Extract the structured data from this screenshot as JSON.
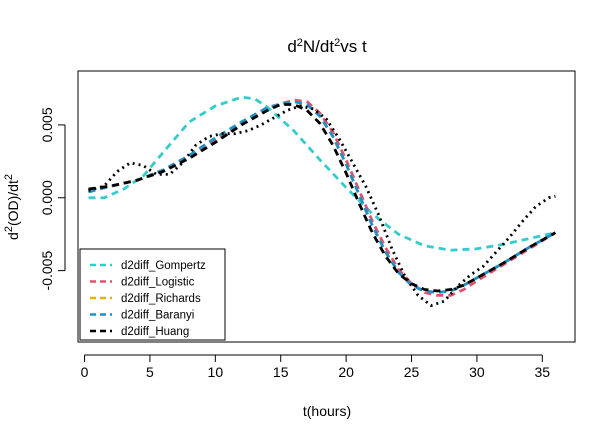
{
  "chart_data": {
    "type": "line",
    "title": {
      "parts": [
        {
          "text": "d",
          "sup": false
        },
        {
          "text": "2",
          "sup": true
        },
        {
          "text": "N/dt",
          "sup": false
        },
        {
          "text": "2",
          "sup": true
        },
        {
          "text": "vs t",
          "sup": false
        }
      ]
    },
    "xlabel": "t(hours)",
    "ylabel": {
      "parts": [
        {
          "text": "d",
          "sup": false
        },
        {
          "text": "2",
          "sup": true
        },
        {
          "text": "(OD)/dt",
          "sup": false
        },
        {
          "text": "2",
          "sup": true
        }
      ]
    },
    "xlim": [
      -0.5,
      37.5
    ],
    "ylim": [
      -0.0099,
      0.0087
    ],
    "x_ticks": [
      0,
      5,
      10,
      15,
      20,
      25,
      30,
      35
    ],
    "x_tick_labels": [
      "0",
      "5",
      "10",
      "15",
      "20",
      "25",
      "30",
      "35"
    ],
    "y_ticks": [
      -0.005,
      0.0,
      0.005
    ],
    "y_tick_labels": [
      "-0.005",
      "0.000",
      "0.005"
    ],
    "grid": false,
    "legend_position": "bottom-left",
    "series": [
      {
        "name": "d2diff_Gompertz",
        "color": "#33cccc",
        "dash": "dashed",
        "points": [
          [
            0.3,
            0.0
          ],
          [
            1.5,
            0.0
          ],
          [
            3,
            0.0006
          ],
          [
            4.5,
            0.0015
          ],
          [
            6,
            0.0031
          ],
          [
            8,
            0.0052
          ],
          [
            10,
            0.0063
          ],
          [
            12,
            0.0069
          ],
          [
            13,
            0.0068
          ],
          [
            14,
            0.0062
          ],
          [
            16,
            0.0046
          ],
          [
            18,
            0.0026
          ],
          [
            20,
            0.0007
          ],
          [
            22,
            -0.0011
          ],
          [
            24,
            -0.0025
          ],
          [
            26,
            -0.0033
          ],
          [
            28,
            -0.0036
          ],
          [
            30,
            -0.0035
          ],
          [
            32,
            -0.0032
          ],
          [
            34,
            -0.0028
          ],
          [
            36,
            -0.0024
          ]
        ]
      },
      {
        "name": "d2diff_Logistic",
        "color": "#e0506e",
        "dash": "dashed",
        "points": [
          [
            0.3,
            0.0004
          ],
          [
            2,
            0.0008
          ],
          [
            4,
            0.0012
          ],
          [
            6,
            0.0019
          ],
          [
            8,
            0.0028
          ],
          [
            10,
            0.0039
          ],
          [
            12,
            0.0051
          ],
          [
            14,
            0.0062
          ],
          [
            16,
            0.0067
          ],
          [
            17,
            0.0066
          ],
          [
            18,
            0.0058
          ],
          [
            19,
            0.0045
          ],
          [
            20,
            0.0026
          ],
          [
            21,
            0.0005
          ],
          [
            22,
            -0.0016
          ],
          [
            23,
            -0.0034
          ],
          [
            24,
            -0.0049
          ],
          [
            25,
            -0.0059
          ],
          [
            26,
            -0.0065
          ],
          [
            27,
            -0.0067
          ],
          [
            28,
            -0.0067
          ],
          [
            29,
            -0.0063
          ],
          [
            30,
            -0.0057
          ],
          [
            32,
            -0.0046
          ],
          [
            34,
            -0.0035
          ],
          [
            36,
            -0.0024
          ]
        ]
      },
      {
        "name": "d2diff_Richards",
        "color": "#e0b400",
        "dash": "dashed",
        "points": [
          [
            0.3,
            0.0004
          ],
          [
            2,
            0.0008
          ],
          [
            4,
            0.0012
          ],
          [
            6,
            0.0019
          ],
          [
            8,
            0.0029
          ],
          [
            10,
            0.0041
          ],
          [
            12,
            0.0052
          ],
          [
            14,
            0.0062
          ],
          [
            16,
            0.0066
          ],
          [
            17,
            0.0064
          ],
          [
            18,
            0.0056
          ],
          [
            19,
            0.0042
          ],
          [
            20,
            0.0023
          ],
          [
            21,
            0.0002
          ],
          [
            22,
            -0.0019
          ],
          [
            23,
            -0.0037
          ],
          [
            24,
            -0.0051
          ],
          [
            25,
            -0.006
          ],
          [
            26,
            -0.0064
          ],
          [
            27,
            -0.0065
          ],
          [
            28,
            -0.0064
          ],
          [
            29,
            -0.006
          ],
          [
            30,
            -0.0055
          ],
          [
            32,
            -0.0045
          ],
          [
            34,
            -0.0034
          ],
          [
            36,
            -0.0024
          ]
        ]
      },
      {
        "name": "d2diff_Baranyi",
        "color": "#1f8fcc",
        "dash": "dashed",
        "points": [
          [
            0.3,
            0.0004
          ],
          [
            2,
            0.0008
          ],
          [
            4,
            0.0012
          ],
          [
            6,
            0.0019
          ],
          [
            8,
            0.0029
          ],
          [
            10,
            0.0041
          ],
          [
            12,
            0.0052
          ],
          [
            14,
            0.0062
          ],
          [
            16,
            0.0066
          ],
          [
            17,
            0.0064
          ],
          [
            18,
            0.0056
          ],
          [
            19,
            0.0042
          ],
          [
            20,
            0.0023
          ],
          [
            21,
            0.0002
          ],
          [
            22,
            -0.0019
          ],
          [
            23,
            -0.0037
          ],
          [
            24,
            -0.0051
          ],
          [
            25,
            -0.006
          ],
          [
            26,
            -0.0064
          ],
          [
            27,
            -0.0065
          ],
          [
            28,
            -0.0064
          ],
          [
            29,
            -0.006
          ],
          [
            30,
            -0.0055
          ],
          [
            32,
            -0.0045
          ],
          [
            34,
            -0.0034
          ],
          [
            36,
            -0.0024
          ]
        ]
      },
      {
        "name": "d2diff_Huang",
        "color": "#000000",
        "dash": "dashed",
        "points": [
          [
            0.3,
            0.0006
          ],
          [
            2,
            0.0008
          ],
          [
            4,
            0.0012
          ],
          [
            6,
            0.0018
          ],
          [
            8,
            0.0027
          ],
          [
            10,
            0.0038
          ],
          [
            12,
            0.005
          ],
          [
            14,
            0.006
          ],
          [
            15,
            0.0064
          ],
          [
            16,
            0.0064
          ],
          [
            17,
            0.006
          ],
          [
            18,
            0.0051
          ],
          [
            19,
            0.0036
          ],
          [
            20,
            0.0017
          ],
          [
            21,
            -0.0004
          ],
          [
            22,
            -0.0024
          ],
          [
            23,
            -0.004
          ],
          [
            24,
            -0.0052
          ],
          [
            25,
            -0.0059
          ],
          [
            26,
            -0.0063
          ],
          [
            27,
            -0.0064
          ],
          [
            28,
            -0.0063
          ],
          [
            29,
            -0.006
          ],
          [
            30,
            -0.0055
          ],
          [
            32,
            -0.0045
          ],
          [
            34,
            -0.0034
          ],
          [
            36,
            -0.0024
          ]
        ]
      },
      {
        "name": "",
        "color": "#000000",
        "dash": "dotted",
        "points": [
          [
            0.3,
            0.0005
          ],
          [
            1.5,
            0.0008
          ],
          [
            2.5,
            0.0018
          ],
          [
            3.5,
            0.0024
          ],
          [
            4.5,
            0.0022
          ],
          [
            5.5,
            0.0016
          ],
          [
            6.5,
            0.0016
          ],
          [
            7.5,
            0.0024
          ],
          [
            8.5,
            0.0036
          ],
          [
            9.5,
            0.0042
          ],
          [
            10.5,
            0.0044
          ],
          [
            11.5,
            0.0044
          ],
          [
            12.5,
            0.0046
          ],
          [
            13.5,
            0.005
          ],
          [
            14.5,
            0.0055
          ],
          [
            15.5,
            0.006
          ],
          [
            16.5,
            0.0063
          ],
          [
            17.5,
            0.0061
          ],
          [
            18.5,
            0.0054
          ],
          [
            19.5,
            0.004
          ],
          [
            20.5,
            0.0024
          ],
          [
            21.5,
            0.0008
          ],
          [
            22.5,
            -0.0012
          ],
          [
            23.5,
            -0.0035
          ],
          [
            24.5,
            -0.0054
          ],
          [
            25.5,
            -0.0067
          ],
          [
            26.5,
            -0.0074
          ],
          [
            27.5,
            -0.0071
          ],
          [
            28.5,
            -0.0061
          ],
          [
            29.5,
            -0.0053
          ],
          [
            30.5,
            -0.0047
          ],
          [
            31.5,
            -0.0037
          ],
          [
            32.5,
            -0.0027
          ],
          [
            33.5,
            -0.0016
          ],
          [
            34.5,
            -0.0006
          ],
          [
            35.5,
            0.0
          ],
          [
            36,
            0.0001
          ]
        ]
      }
    ]
  }
}
